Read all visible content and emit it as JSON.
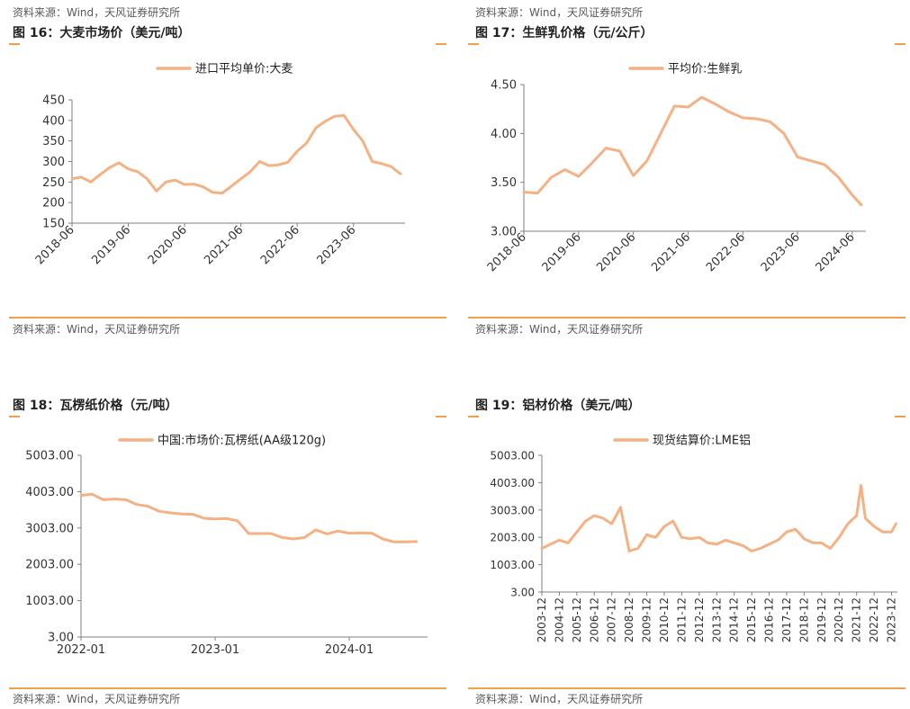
{
  "accent_color": "#f0a04b",
  "line_color": "#f4b183",
  "top_source": "资料来源：Wind，天风证券研究所",
  "charts": [
    {
      "id": "p16",
      "title": "图 16：大麦市场价（美元/吨）",
      "source": "资料来源：Wind，天风证券研究所",
      "legend": "进口平均单价:大麦",
      "yticks": [
        "450",
        "400",
        "350",
        "300",
        "250",
        "200",
        "150"
      ],
      "xticks": [
        "2018-06",
        "2019-06",
        "2020-06",
        "2021-06",
        "2022-06",
        "2023-06"
      ]
    },
    {
      "id": "p17",
      "title": "图 17：生鲜乳价格（元/公斤）",
      "source": "资料来源：Wind，天风证券研究所",
      "legend": "平均价:生鲜乳",
      "yticks": [
        "4.50",
        "4.00",
        "3.50",
        "3.00"
      ],
      "xticks": [
        "2018-06",
        "2019-06",
        "2020-06",
        "2021-06",
        "2022-06",
        "2023-06",
        "2024-06"
      ]
    },
    {
      "id": "p18",
      "title": "图 18：瓦楞纸价格（元/吨）",
      "source": "资料来源：Wind，天风证券研究所",
      "legend": "中国:市场价:瓦楞纸(AA级120g)",
      "yticks": [
        "5003.00",
        "4003.00",
        "3003.00",
        "2003.00",
        "1003.00",
        "3.00"
      ],
      "xticks": [
        "2022-01",
        "2023-01",
        "2024-01"
      ]
    },
    {
      "id": "p19",
      "title": "图 19：铝材价格（美元/吨）",
      "source": "资料来源：Wind，天风证券研究所",
      "legend": "现货结算价:LME铝",
      "yticks": [
        "5003.00",
        "4003.00",
        "3003.00",
        "2003.00",
        "1003.00",
        "3.00"
      ],
      "xticks": [
        "2003-12",
        "2004-12",
        "2005-12",
        "2006-12",
        "2007-12",
        "2008-12",
        "2009-12",
        "2010-12",
        "2011-12",
        "2012-12",
        "2013-12",
        "2014-12",
        "2015-12",
        "2016-12",
        "2017-12",
        "2018-12",
        "2019-12",
        "2020-12",
        "2021-12",
        "2022-12",
        "2023-12"
      ]
    }
  ],
  "chart_data": [
    {
      "type": "line",
      "title": "图 16：大麦市场价（美元/吨）",
      "ylim": [
        150,
        450
      ],
      "x": [
        "2018-06",
        "2018-08",
        "2018-10",
        "2018-12",
        "2019-02",
        "2019-04",
        "2019-06",
        "2019-08",
        "2019-10",
        "2019-12",
        "2020-02",
        "2020-04",
        "2020-06",
        "2020-08",
        "2020-10",
        "2020-12",
        "2021-02",
        "2021-04",
        "2021-06",
        "2021-08",
        "2021-10",
        "2021-12",
        "2022-02",
        "2022-04",
        "2022-06",
        "2022-08",
        "2022-10",
        "2022-12",
        "2023-02",
        "2023-04",
        "2023-06",
        "2023-08",
        "2023-10",
        "2023-12",
        "2024-02",
        "2024-04"
      ],
      "series": [
        {
          "name": "进口平均单价:大麦",
          "values": [
            258,
            262,
            250,
            268,
            285,
            297,
            282,
            275,
            258,
            228,
            250,
            255,
            244,
            245,
            238,
            225,
            223,
            240,
            258,
            275,
            300,
            290,
            292,
            298,
            325,
            345,
            382,
            398,
            410,
            412,
            378,
            350,
            300,
            295,
            288,
            270
          ]
        }
      ]
    },
    {
      "type": "line",
      "title": "图 17：生鲜乳价格（元/公斤）",
      "ylim": [
        3.0,
        4.5
      ],
      "x": [
        "2018-06",
        "2018-09",
        "2018-12",
        "2019-03",
        "2019-06",
        "2019-09",
        "2019-12",
        "2020-03",
        "2020-06",
        "2020-09",
        "2020-12",
        "2021-03",
        "2021-06",
        "2021-09",
        "2021-12",
        "2022-03",
        "2022-06",
        "2022-09",
        "2022-12",
        "2023-03",
        "2023-06",
        "2023-09",
        "2023-12",
        "2024-03",
        "2024-06",
        "2024-08"
      ],
      "series": [
        {
          "name": "平均价:生鲜乳",
          "values": [
            3.4,
            3.39,
            3.55,
            3.63,
            3.56,
            3.7,
            3.85,
            3.82,
            3.57,
            3.72,
            4.0,
            4.28,
            4.27,
            4.37,
            4.3,
            4.22,
            4.16,
            4.15,
            4.12,
            4.0,
            3.76,
            3.72,
            3.68,
            3.55,
            3.37,
            3.27
          ]
        }
      ]
    },
    {
      "type": "line",
      "title": "图 18：瓦楞纸价格（元/吨）",
      "ylim": [
        3.0,
        5003.0
      ],
      "x": [
        "2022-01",
        "2022-02",
        "2022-03",
        "2022-04",
        "2022-05",
        "2022-06",
        "2022-07",
        "2022-08",
        "2022-09",
        "2022-10",
        "2022-11",
        "2022-12",
        "2023-01",
        "2023-02",
        "2023-03",
        "2023-04",
        "2023-05",
        "2023-06",
        "2023-07",
        "2023-08",
        "2023-09",
        "2023-10",
        "2023-11",
        "2023-12",
        "2024-01",
        "2024-02",
        "2024-03",
        "2024-04",
        "2024-05",
        "2024-06",
        "2024-07"
      ],
      "series": [
        {
          "name": "中国:市场价:瓦楞纸(AA级120g)",
          "values": [
            3900,
            3930,
            3780,
            3800,
            3780,
            3650,
            3600,
            3460,
            3420,
            3390,
            3380,
            3270,
            3250,
            3260,
            3200,
            2850,
            2850,
            2850,
            2740,
            2700,
            2740,
            2950,
            2840,
            2920,
            2860,
            2870,
            2860,
            2700,
            2620,
            2620,
            2630
          ]
        }
      ]
    },
    {
      "type": "line",
      "title": "图 19：铝材价格（美元/吨）",
      "ylim": [
        3.0,
        5003.0
      ],
      "x": [
        "2003-12",
        "2004-06",
        "2004-12",
        "2005-06",
        "2005-12",
        "2006-06",
        "2006-12",
        "2007-06",
        "2007-12",
        "2008-06",
        "2008-12",
        "2009-06",
        "2009-12",
        "2010-06",
        "2010-12",
        "2011-06",
        "2011-12",
        "2012-06",
        "2012-12",
        "2013-06",
        "2013-12",
        "2014-06",
        "2014-12",
        "2015-06",
        "2015-12",
        "2016-06",
        "2016-12",
        "2017-06",
        "2017-12",
        "2018-06",
        "2018-12",
        "2019-06",
        "2019-12",
        "2020-06",
        "2020-12",
        "2021-06",
        "2021-12",
        "2022-03",
        "2022-06",
        "2022-12",
        "2023-06",
        "2023-12",
        "2024-03"
      ],
      "series": [
        {
          "name": "现货结算价:LME铝",
          "values": [
            1600,
            1750,
            1900,
            1800,
            2200,
            2600,
            2800,
            2700,
            2500,
            3100,
            1500,
            1600,
            2100,
            2000,
            2400,
            2600,
            2000,
            1950,
            2000,
            1800,
            1750,
            1900,
            1800,
            1700,
            1500,
            1600,
            1750,
            1900,
            2200,
            2300,
            1950,
            1800,
            1800,
            1600,
            2000,
            2500,
            2800,
            3900,
            2700,
            2400,
            2200,
            2200,
            2500
          ]
        }
      ]
    }
  ]
}
